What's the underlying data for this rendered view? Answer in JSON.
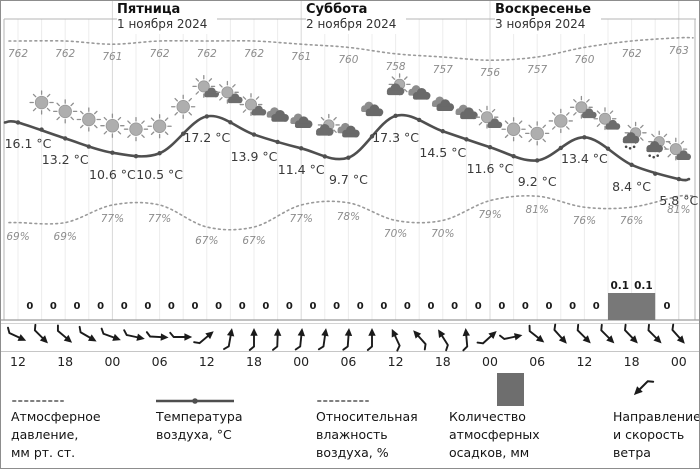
{
  "header": {
    "days": [
      {
        "name": "Пятница",
        "date": "1 ноября 2024"
      },
      {
        "name": "Суббота",
        "date": "2 ноября 2024"
      },
      {
        "name": "Воскресенье",
        "date": "3 ноября 2024"
      }
    ]
  },
  "chart_data": {
    "type": "line",
    "x_time_labels": [
      "12",
      "18",
      "00",
      "06",
      "12",
      "18",
      "00",
      "06",
      "12",
      "18",
      "00",
      "06",
      "12",
      "18",
      "00"
    ],
    "day_boundary_indices": [
      4,
      12,
      20,
      28
    ],
    "series": [
      {
        "name": "pressure",
        "label": "Атмосферное давление, мм рт. ст.",
        "style": "dotted",
        "values": [
          762,
          762,
          761,
          762,
          762,
          762,
          761,
          760,
          758,
          757,
          756,
          757,
          760,
          762,
          763
        ]
      },
      {
        "name": "temperature",
        "label": "Температура воздуха, °C",
        "style": "solid",
        "unit": "°C",
        "values": [
          16.1,
          13.2,
          10.6,
          10.5,
          17.2,
          13.9,
          11.4,
          9.7,
          17.3,
          14.5,
          11.6,
          9.2,
          13.4,
          8.4,
          5.8
        ]
      },
      {
        "name": "humidity",
        "label": "Относительная влажность воздуха, %",
        "style": "dotted",
        "unit": "%",
        "values": [
          69,
          69,
          77,
          77,
          67,
          67,
          77,
          78,
          70,
          70,
          79,
          81,
          76,
          76,
          81
        ]
      },
      {
        "name": "precipitation",
        "label": "Количество атмосферных осадков, мм",
        "style": "bar",
        "values": [
          0,
          0,
          0,
          0,
          0,
          0,
          0,
          0,
          0,
          0,
          0,
          0,
          0,
          0,
          0,
          0,
          0,
          0,
          0,
          0,
          0,
          0,
          0,
          0,
          0,
          0.1,
          0.1,
          0
        ]
      }
    ],
    "weather_icons": [
      "sun",
      "sun",
      "sun",
      "sun",
      "sun",
      "sun",
      "sun",
      "sun-cloud",
      "sun-cloud",
      "sun-cloud",
      "cloud",
      "cloud",
      "cloud-sun",
      "cloud",
      "cloud",
      "cloud-sun",
      "cloud",
      "cloud",
      "cloud",
      "sun-cloud",
      "sun",
      "sun",
      "sun",
      "sun-cloud",
      "sun-cloud",
      "rain",
      "rain",
      "sun-cloud"
    ],
    "wind_arrow_angles_deg": [
      25,
      45,
      40,
      30,
      20,
      12,
      3,
      0,
      -40,
      -80,
      -90,
      -88,
      -84,
      -82,
      -86,
      -90,
      -115,
      -132,
      -122,
      -95,
      -42,
      -12,
      38,
      48,
      45,
      45,
      46,
      45,
      48
    ]
  },
  "legend": [
    {
      "sample": "dotted-line",
      "lines": [
        "Атмосферное",
        "давление,",
        "мм рт. ст."
      ]
    },
    {
      "sample": "solid-line",
      "lines": [
        "Температура",
        "воздуха, °C"
      ]
    },
    {
      "sample": "dotted-line",
      "lines": [
        "Относительная",
        "влажность",
        "воздуха, %"
      ]
    },
    {
      "sample": "gray-square",
      "lines": [
        "Количество",
        "атмосферных",
        "осадков, мм"
      ]
    },
    {
      "sample": "wind-arrow",
      "lines": [
        "Направление",
        "и скорость",
        "ветра"
      ]
    }
  ],
  "colors": {
    "temperature_line": "#4f4f4f",
    "dotted_lines": "#9a9a9a",
    "precip_bar": "#787878",
    "wind_arrow": "#1b1b1b",
    "grid": "#ececec",
    "day_separator": "#d8d8d8"
  }
}
